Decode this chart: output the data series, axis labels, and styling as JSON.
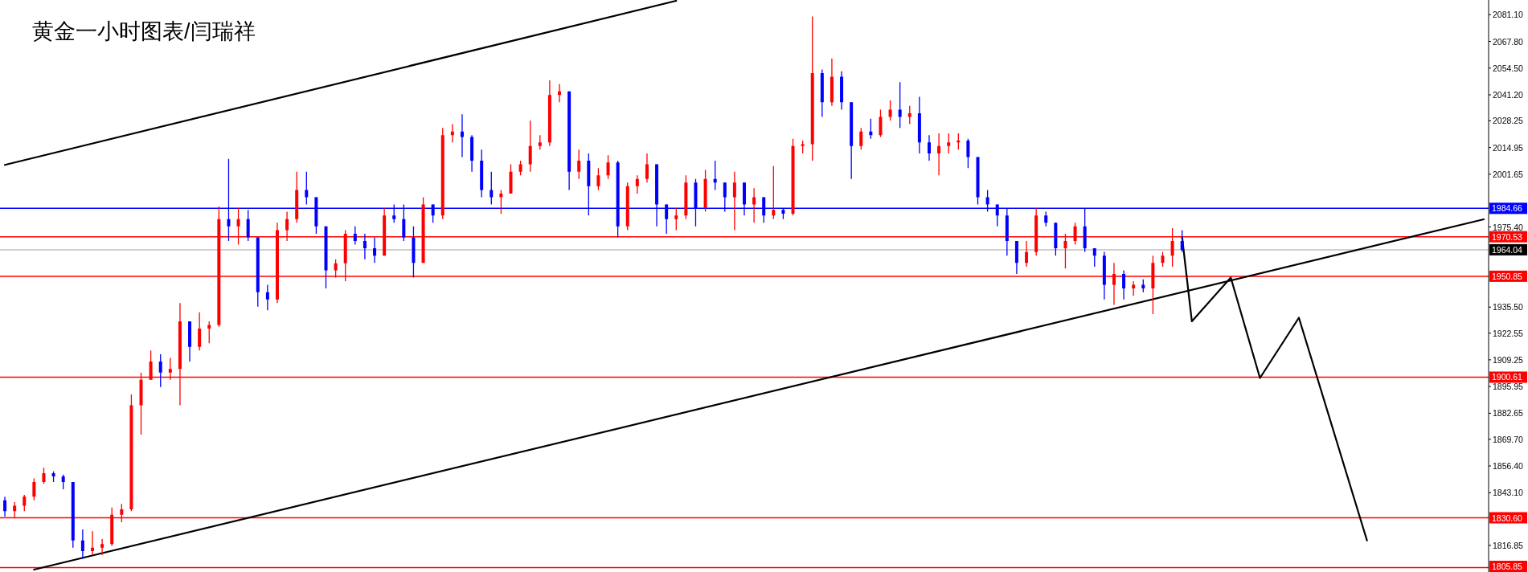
{
  "chart_data": {
    "type": "candlestick",
    "title": "黄金一小时图表/闫瑞祥",
    "categories": [
      null,
      null,
      null,
      null,
      null,
      null,
      null,
      null,
      null,
      null,
      null,
      null,
      null,
      null,
      null,
      null,
      null,
      null,
      null,
      null,
      null,
      null,
      null,
      null,
      null,
      null,
      null,
      null,
      null,
      null,
      null,
      null,
      null,
      null,
      null,
      null,
      null,
      null,
      null,
      null,
      null,
      null,
      null,
      null,
      null,
      null,
      null,
      null,
      null,
      null,
      null,
      null,
      null,
      null,
      null,
      null,
      null,
      null,
      null,
      null,
      null,
      null,
      null,
      null,
      null,
      null,
      null,
      null,
      null,
      null,
      null,
      null,
      null,
      null,
      null,
      null,
      null,
      null,
      null,
      null,
      null,
      null,
      null,
      null,
      null,
      null,
      null,
      null,
      null,
      null,
      null,
      null,
      null,
      null,
      null,
      null,
      null,
      null,
      null,
      null,
      null,
      null,
      null,
      null,
      null,
      null,
      null,
      null,
      null,
      null,
      null,
      null,
      null,
      null,
      null,
      null,
      null,
      null,
      null,
      null,
      null,
      null,
      null,
      null,
      null,
      null,
      null,
      null,
      null,
      null,
      null,
      null,
      null,
      null,
      null,
      null,
      null,
      null,
      null,
      null,
      null,
      null,
      null,
      null,
      null,
      null,
      null,
      null,
      null,
      null,
      null,
      null,
      null
    ],
    "ohlc": [
      [
        1839.3,
        1841.1,
        1831.2,
        1833.9
      ],
      [
        1833.9,
        1838.4,
        1830.6,
        1836.6
      ],
      [
        1836.6,
        1842.0,
        1833.9,
        1841.1
      ],
      [
        1841.1,
        1850.2,
        1839.3,
        1848.4
      ],
      [
        1848.4,
        1855.5,
        1847.5,
        1852.8
      ],
      [
        1852.8,
        1853.7,
        1848.4,
        1851.2
      ],
      [
        1851.2,
        1852.1,
        1844.8,
        1848.4
      ],
      [
        1848.4,
        1848.4,
        1815.7,
        1819.3
      ],
      [
        1819.3,
        1824.8,
        1810.2,
        1814.0
      ],
      [
        1814.0,
        1823.9,
        1812.1,
        1815.7
      ],
      [
        1815.7,
        1820.0,
        1812.1,
        1817.5
      ],
      [
        1817.5,
        1835.7,
        1816.6,
        1832.1
      ],
      [
        1832.1,
        1837.5,
        1828.4,
        1834.8
      ],
      [
        1834.8,
        1892.0,
        1833.9,
        1886.6
      ],
      [
        1886.6,
        1902.9,
        1872.0,
        1899.3
      ],
      [
        1899.3,
        1913.9,
        1899.3,
        1908.4
      ],
      [
        1908.4,
        1912.0,
        1895.7,
        1902.9
      ],
      [
        1902.9,
        1910.2,
        1899.3,
        1904.7
      ],
      [
        1904.7,
        1937.5,
        1886.6,
        1928.4
      ],
      [
        1928.4,
        1928.4,
        1908.4,
        1915.7
      ],
      [
        1915.7,
        1932.9,
        1913.9,
        1924.8
      ],
      [
        1924.8,
        1928.4,
        1917.5,
        1926.6
      ],
      [
        1926.6,
        1985.6,
        1925.7,
        1979.3
      ],
      [
        1979.3,
        2009.3,
        1968.4,
        1975.7
      ],
      [
        1975.7,
        1984.8,
        1966.6,
        1979.3
      ],
      [
        1979.3,
        1983.9,
        1968.4,
        1970.2
      ],
      [
        1970.2,
        1970.2,
        1935.7,
        1942.9
      ],
      [
        1942.9,
        1946.6,
        1933.9,
        1939.3
      ],
      [
        1939.3,
        1977.5,
        1937.5,
        1973.8
      ],
      [
        1973.8,
        1983.0,
        1968.4,
        1979.3
      ],
      [
        1979.3,
        2002.9,
        1977.5,
        1993.8
      ],
      [
        1993.8,
        2002.9,
        1986.6,
        1990.2
      ],
      [
        1990.2,
        1990.2,
        1972.0,
        1975.7
      ],
      [
        1975.7,
        1975.7,
        1944.8,
        1953.8
      ],
      [
        1953.8,
        1959.3,
        1950.2,
        1957.3
      ],
      [
        1957.3,
        1973.8,
        1948.4,
        1972.0
      ],
      [
        1972.0,
        1975.7,
        1966.6,
        1968.4
      ],
      [
        1968.4,
        1972.0,
        1959.3,
        1964.8
      ],
      [
        1964.8,
        1970.2,
        1957.5,
        1961.1
      ],
      [
        1961.1,
        1984.8,
        1961.1,
        1981.1
      ],
      [
        1981.1,
        1986.6,
        1977.5,
        1979.3
      ],
      [
        1979.3,
        1986.6,
        1968.4,
        1970.2
      ],
      [
        1970.2,
        1975.7,
        1950.2,
        1957.5
      ],
      [
        1957.5,
        1990.2,
        1957.5,
        1986.6
      ],
      [
        1986.6,
        1986.6,
        1977.5,
        1981.1
      ],
      [
        1981.1,
        2024.7,
        1979.3,
        2021.1
      ],
      [
        2021.1,
        2026.6,
        2017.5,
        2022.9
      ],
      [
        2022.9,
        2031.5,
        2010.2,
        2020.2
      ],
      [
        2020.2,
        2021.1,
        2002.9,
        2008.4
      ],
      [
        2008.4,
        2013.9,
        1990.2,
        1993.8
      ],
      [
        1993.8,
        2002.9,
        1986.6,
        1990.2
      ],
      [
        1990.2,
        1993.8,
        1982.0,
        1992.0
      ],
      [
        1992.0,
        2006.6,
        1992.0,
        2002.9
      ],
      [
        2002.9,
        2008.4,
        2001.1,
        2006.6
      ],
      [
        2006.6,
        2028.4,
        2002.9,
        2015.7
      ],
      [
        2015.7,
        2021.1,
        2013.9,
        2017.5
      ],
      [
        2017.5,
        2048.4,
        2015.7,
        2041.1
      ],
      [
        2041.1,
        2046.6,
        2037.5,
        2042.9
      ],
      [
        2042.9,
        2042.9,
        1993.8,
        2002.9
      ],
      [
        2002.9,
        2013.9,
        1999.3,
        2008.4
      ],
      [
        2008.4,
        2012.0,
        1981.1,
        1995.7
      ],
      [
        1995.7,
        2004.7,
        1993.8,
        2001.1
      ],
      [
        2001.1,
        2011.1,
        1999.3,
        2007.5
      ],
      [
        2007.5,
        2008.4,
        1970.2,
        1975.7
      ],
      [
        1975.7,
        1997.5,
        1973.8,
        1995.7
      ],
      [
        1995.7,
        2001.1,
        1992.0,
        1999.3
      ],
      [
        1999.3,
        2012.0,
        1997.5,
        2006.6
      ],
      [
        2006.6,
        2006.6,
        1975.7,
        1986.6
      ],
      [
        1986.6,
        1986.6,
        1972.0,
        1979.3
      ],
      [
        1979.3,
        1984.8,
        1973.8,
        1981.1
      ],
      [
        1981.1,
        2001.1,
        1979.3,
        1997.5
      ],
      [
        1997.5,
        1999.3,
        1975.7,
        1984.8
      ],
      [
        1984.8,
        2003.8,
        1983.0,
        1999.3
      ],
      [
        1999.3,
        2008.4,
        1993.8,
        1997.5
      ],
      [
        1997.5,
        1997.5,
        1983.0,
        1990.2
      ],
      [
        1990.2,
        2002.9,
        1973.8,
        1997.5
      ],
      [
        1997.5,
        1997.5,
        1981.1,
        1986.6
      ],
      [
        1986.6,
        1994.7,
        1977.5,
        1990.2
      ],
      [
        1990.2,
        1990.2,
        1977.5,
        1981.1
      ],
      [
        1981.1,
        2005.7,
        1979.3,
        1983.9
      ],
      [
        1983.9,
        1984.8,
        1979.3,
        1982.0
      ],
      [
        1982.0,
        2019.3,
        1981.1,
        2015.7
      ],
      [
        2015.7,
        2018.4,
        2012.0,
        2016.6
      ],
      [
        2016.6,
        2080.2,
        2008.4,
        2052.0
      ],
      [
        2052.0,
        2053.8,
        2030.2,
        2037.5
      ],
      [
        2037.5,
        2059.3,
        2035.7,
        2050.2
      ],
      [
        2050.2,
        2052.9,
        2033.8,
        2037.5
      ],
      [
        2037.5,
        2037.5,
        1999.3,
        2015.7
      ],
      [
        2015.7,
        2024.7,
        2013.9,
        2022.9
      ],
      [
        2022.9,
        2029.3,
        2019.3,
        2021.1
      ],
      [
        2021.1,
        2033.8,
        2020.2,
        2030.2
      ],
      [
        2030.2,
        2038.4,
        2028.4,
        2033.8
      ],
      [
        2033.8,
        2047.5,
        2024.7,
        2030.2
      ],
      [
        2030.2,
        2035.7,
        2026.6,
        2032.0
      ],
      [
        2032.0,
        2040.2,
        2012.0,
        2017.5
      ],
      [
        2017.5,
        2021.1,
        2008.4,
        2012.0
      ],
      [
        2012.0,
        2022.0,
        2001.1,
        2015.7
      ],
      [
        2015.7,
        2022.0,
        2012.0,
        2017.5
      ],
      [
        2017.5,
        2022.0,
        2013.9,
        2018.4
      ],
      [
        2018.4,
        2019.3,
        2004.7,
        2010.2
      ],
      [
        2010.2,
        2010.2,
        1986.6,
        1990.2
      ],
      [
        1990.2,
        1993.8,
        1983.0,
        1986.6
      ],
      [
        1986.6,
        1986.6,
        1975.7,
        1981.1
      ],
      [
        1981.1,
        1984.8,
        1961.1,
        1968.4
      ],
      [
        1968.4,
        1968.4,
        1952.0,
        1957.5
      ],
      [
        1957.5,
        1968.4,
        1955.6,
        1962.9
      ],
      [
        1962.9,
        1984.8,
        1961.1,
        1981.1
      ],
      [
        1981.1,
        1983.0,
        1975.7,
        1977.5
      ],
      [
        1977.5,
        1977.5,
        1961.1,
        1964.8
      ],
      [
        1964.8,
        1972.0,
        1954.7,
        1968.4
      ],
      [
        1968.4,
        1977.5,
        1966.6,
        1975.7
      ],
      [
        1975.7,
        1984.8,
        1963.0,
        1964.8
      ],
      [
        1964.8,
        1964.8,
        1955.6,
        1961.1
      ],
      [
        1961.1,
        1963.0,
        1939.3,
        1946.6
      ],
      [
        1946.6,
        1957.5,
        1936.6,
        1952.0
      ],
      [
        1952.0,
        1953.8,
        1939.3,
        1944.8
      ],
      [
        1944.8,
        1948.4,
        1941.1,
        1946.6
      ],
      [
        1946.6,
        1949.3,
        1942.9,
        1944.8
      ],
      [
        1944.8,
        1961.1,
        1932.0,
        1957.5
      ],
      [
        1957.5,
        1963.0,
        1955.6,
        1961.1
      ],
      [
        1961.1,
        1974.8,
        1955.6,
        1968.4
      ],
      [
        1968.4,
        1973.8,
        1963.0,
        1964.0
      ],
      null,
      null,
      null,
      null,
      null,
      null,
      null,
      null,
      null,
      null,
      null,
      null,
      null,
      null,
      null,
      null,
      null,
      null,
      null,
      null,
      null,
      null,
      null,
      null,
      null,
      null,
      null,
      null,
      null,
      null,
      null
    ],
    "colors": [
      "#0000ff",
      "#ff0000",
      "#ff0000",
      "#ff0000",
      "#ff0000",
      "#0000ff",
      "#0000ff",
      "#0000ff",
      "#0000ff",
      "#ff0000",
      "#ff0000",
      "#ff0000",
      "#ff0000",
      "#ff0000",
      "#ff0000",
      "#ff0000",
      "#0000ff",
      "#ff0000",
      "#ff0000",
      "#0000ff",
      "#ff0000",
      "#ff0000",
      "#ff0000",
      "#0000ff",
      "#ff0000",
      "#0000ff",
      "#0000ff",
      "#0000ff",
      "#ff0000",
      "#ff0000",
      "#ff0000",
      "#0000ff",
      "#0000ff",
      "#0000ff",
      "#ff0000",
      "#ff0000",
      "#0000ff",
      "#0000ff",
      "#0000ff",
      "#ff0000",
      "#0000ff",
      "#0000ff",
      "#0000ff",
      "#ff0000",
      "#0000ff",
      "#ff0000",
      "#ff0000",
      "#0000ff",
      "#0000ff",
      "#0000ff",
      "#0000ff",
      "#ff0000",
      "#ff0000",
      "#ff0000",
      "#ff0000",
      "#ff0000",
      "#ff0000",
      "#ff0000",
      "#0000ff",
      "#ff0000",
      "#0000ff",
      "#ff0000",
      "#ff0000",
      "#0000ff",
      "#ff0000",
      "#ff0000",
      "#ff0000",
      "#0000ff",
      "#0000ff",
      "#ff0000",
      "#ff0000",
      "#0000ff",
      "#ff0000",
      "#0000ff",
      "#0000ff",
      "#ff0000",
      "#0000ff",
      "#ff0000",
      "#0000ff",
      "#ff0000",
      "#0000ff",
      "#ff0000",
      "#ff0000",
      "#ff0000",
      "#0000ff",
      "#ff0000",
      "#0000ff",
      "#0000ff",
      "#ff0000",
      "#0000ff",
      "#ff0000",
      "#ff0000",
      "#0000ff",
      "#ff0000",
      "#0000ff",
      "#0000ff",
      "#ff0000",
      "#ff0000",
      "#ff0000",
      "#0000ff",
      "#0000ff",
      "#0000ff",
      "#0000ff",
      "#0000ff",
      "#0000ff",
      "#ff0000",
      "#ff0000",
      "#0000ff",
      "#0000ff",
      "#ff0000",
      "#ff0000",
      "#0000ff",
      "#0000ff",
      "#0000ff",
      "#ff0000",
      "#0000ff",
      "#ff0000",
      "#0000ff",
      "#ff0000",
      "#ff0000",
      "#ff0000",
      "#0000ff",
      null,
      null,
      null,
      null,
      null,
      null,
      null,
      null,
      null,
      null,
      null,
      null,
      null,
      null,
      null,
      null,
      null,
      null,
      null,
      null,
      null,
      null,
      null,
      null,
      null,
      null,
      null,
      null,
      null,
      null,
      null
    ],
    "series": [
      {
        "type": "line",
        "color": "#000000",
        "values": [
          2006.3,
          null,
          null,
          null,
          null,
          null,
          null,
          null,
          null,
          null,
          null,
          null,
          null,
          null,
          null,
          null,
          null,
          null,
          null,
          null,
          null,
          null,
          null,
          null,
          null,
          null,
          null,
          null,
          null,
          null,
          null,
          null,
          null,
          null,
          null,
          null,
          null,
          null,
          null,
          null,
          null,
          null,
          null,
          null,
          null,
          null,
          null,
          null,
          null,
          null,
          null,
          null,
          null,
          null,
          null,
          null,
          null,
          null,
          null,
          null,
          null,
          null,
          null,
          null,
          null,
          null,
          null,
          null,
          null,
          2088.0,
          null,
          null,
          null,
          null,
          null,
          null,
          null,
          null,
          null,
          null,
          null,
          null,
          null,
          null,
          null,
          null,
          null,
          null,
          null,
          null,
          null,
          null,
          null,
          null,
          null,
          null,
          null,
          null,
          null,
          null,
          null,
          null,
          null,
          null,
          null,
          null,
          null,
          null,
          null,
          null,
          null,
          null,
          null,
          null,
          null,
          null,
          null,
          null,
          null,
          null,
          null,
          null,
          null,
          null,
          null,
          null,
          null,
          null,
          null,
          null,
          null,
          null,
          null,
          null,
          null,
          null,
          null,
          null,
          null,
          null,
          null,
          null,
          null,
          null,
          null,
          null,
          null,
          null,
          null,
          null,
          null,
          null,
          null
        ]
      },
      {
        "type": "line",
        "color": "#000000",
        "values": [
          null,
          null,
          null,
          1804.8,
          null,
          null,
          null,
          null,
          null,
          null,
          null,
          null,
          null,
          null,
          null,
          null,
          null,
          null,
          null,
          null,
          null,
          null,
          null,
          null,
          null,
          null,
          null,
          null,
          null,
          null,
          null,
          null,
          null,
          null,
          null,
          null,
          null,
          null,
          null,
          null,
          null,
          null,
          null,
          null,
          null,
          null,
          null,
          null,
          null,
          null,
          null,
          null,
          null,
          null,
          null,
          null,
          null,
          null,
          null,
          null,
          null,
          null,
          null,
          null,
          null,
          null,
          null,
          null,
          null,
          null,
          null,
          null,
          null,
          null,
          null,
          null,
          null,
          null,
          null,
          null,
          null,
          null,
          null,
          null,
          null,
          null,
          null,
          null,
          null,
          null,
          null,
          null,
          null,
          null,
          null,
          null,
          null,
          null,
          null,
          null,
          null,
          null,
          null,
          null,
          null,
          null,
          null,
          null,
          null,
          null,
          null,
          null,
          null,
          null,
          null,
          null,
          null,
          null,
          null,
          null,
          null,
          null,
          null,
          null,
          null,
          null,
          null,
          null,
          null,
          null,
          null,
          null,
          null,
          null,
          null,
          null,
          null,
          null,
          null,
          null,
          null,
          null,
          null,
          null,
          null,
          null,
          null,
          null,
          null,
          null,
          null,
          null,
          1979.2
        ]
      },
      {
        "type": "line",
        "color": "#000000",
        "values": [
          null,
          null,
          null,
          null,
          null,
          null,
          null,
          null,
          null,
          null,
          null,
          null,
          null,
          null,
          null,
          null,
          null,
          null,
          null,
          null,
          null,
          null,
          null,
          null,
          null,
          null,
          null,
          null,
          null,
          null,
          null,
          null,
          null,
          null,
          null,
          null,
          null,
          null,
          null,
          null,
          null,
          null,
          null,
          null,
          null,
          null,
          null,
          null,
          null,
          null,
          null,
          null,
          null,
          null,
          null,
          null,
          null,
          null,
          null,
          null,
          null,
          null,
          null,
          null,
          null,
          null,
          null,
          null,
          null,
          null,
          null,
          null,
          null,
          null,
          null,
          null,
          null,
          null,
          null,
          null,
          null,
          null,
          null,
          null,
          null,
          null,
          null,
          null,
          null,
          null,
          null,
          null,
          null,
          null,
          null,
          null,
          null,
          null,
          null,
          null,
          null,
          null,
          null,
          null,
          null,
          null,
          null,
          null,
          null,
          null,
          null,
          null,
          null,
          null,
          null,
          null,
          null,
          null,
          null,
          null,
          null,
          1970.2,
          1928.4,
          null,
          null,
          null,
          1950.2,
          null,
          null,
          1900.2,
          null,
          null,
          null,
          1930.2,
          null,
          null,
          null,
          null,
          null,
          null,
          1819.3,
          null,
          null,
          null,
          null,
          null,
          null,
          null,
          null,
          null,
          null,
          null,
          null
        ]
      }
    ],
    "ylim": [
      1803.6,
      2088.4
    ],
    "yticks": [
      {
        "value": 2081.1,
        "label": "2081.10"
      },
      {
        "value": 2067.8,
        "label": "2067.80"
      },
      {
        "value": 2054.5,
        "label": "2054.50"
      },
      {
        "value": 2041.2,
        "label": "2041.20"
      },
      2028.25,
      2014.95,
      2001.65,
      {
        "value": 1975.4,
        "label": "1975.40"
      },
      {
        "value": 1935.5,
        "label": "1935.50"
      },
      1922.55,
      1909.25,
      1895.95,
      1882.65,
      {
        "value": 1869.7,
        "label": "1869.70"
      },
      {
        "value": 1856.4,
        "label": "1856.40"
      },
      {
        "value": 1843.1,
        "label": "1843.10"
      },
      1816.85
    ],
    "ref_lines": [
      {
        "axis": "y",
        "value": 1984.66,
        "label": "1984.66",
        "color": "#0000ff"
      },
      {
        "axis": "y",
        "value": 1970.53,
        "label": "1970.53",
        "color": "#ff0000"
      },
      {
        "axis": "y",
        "value": 1964.04,
        "label": "1964.04",
        "color": "#c0c0c0"
      },
      {
        "axis": "y",
        "value": 1950.85,
        "label": "1950.85",
        "color": "#ff0000"
      },
      {
        "axis": "y",
        "value": 1900.61,
        "label": "1900.61",
        "color": "#ff0000"
      },
      {
        "axis": "y",
        "value": 1830.6,
        "label": "1830.60",
        "color": "#ff0000"
      },
      {
        "axis": "y",
        "value": 1805.85,
        "label": "1805.85",
        "color": "#ff0000"
      }
    ],
    "tick_labels": "y"
  }
}
